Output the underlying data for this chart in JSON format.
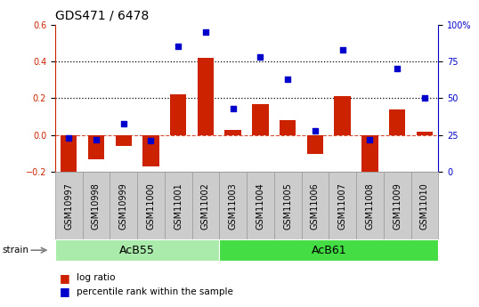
{
  "title": "GDS471 / 6478",
  "samples": [
    "GSM10997",
    "GSM10998",
    "GSM10999",
    "GSM11000",
    "GSM11001",
    "GSM11002",
    "GSM11003",
    "GSM11004",
    "GSM11005",
    "GSM11006",
    "GSM11007",
    "GSM11008",
    "GSM11009",
    "GSM11010"
  ],
  "log_ratio": [
    -0.2,
    -0.13,
    -0.06,
    -0.17,
    0.22,
    0.42,
    0.03,
    0.17,
    0.08,
    -0.1,
    0.21,
    -0.22,
    0.14,
    0.02
  ],
  "percentile": [
    23,
    22,
    33,
    21,
    85,
    95,
    43,
    78,
    63,
    28,
    83,
    22,
    70,
    50
  ],
  "groups": [
    {
      "label": "AcB55",
      "start": 0,
      "end": 6,
      "color": "#aaeaaa"
    },
    {
      "label": "AcB61",
      "start": 6,
      "end": 14,
      "color": "#44dd44"
    }
  ],
  "bar_color": "#cc2200",
  "dot_color": "#0000cc",
  "left_ylim": [
    -0.2,
    0.6
  ],
  "right_ylim": [
    0,
    100
  ],
  "left_yticks": [
    -0.2,
    0.0,
    0.2,
    0.4,
    0.6
  ],
  "right_yticks": [
    0,
    25,
    50,
    75,
    100
  ],
  "right_yticklabels": [
    "0",
    "25",
    "50",
    "75",
    "100%"
  ],
  "hlines": [
    0.2,
    0.4
  ],
  "legend_labels": [
    "log ratio",
    "percentile rank within the sample"
  ],
  "strain_label": "strain",
  "background_color": "#ffffff",
  "plot_bg_color": "#ffffff",
  "title_fontsize": 10,
  "tick_fontsize": 7,
  "legend_fontsize": 7.5,
  "group_fontsize": 9,
  "xlabel_cell_color": "#cccccc",
  "xlabel_cell_edge": "#999999"
}
